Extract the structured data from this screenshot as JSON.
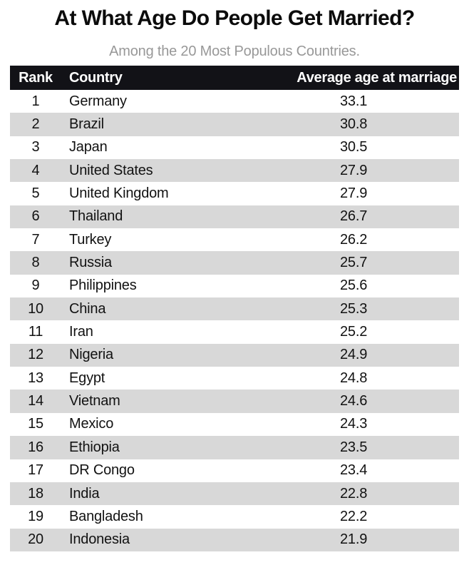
{
  "title": "At What Age Do People Get Married?",
  "subtitle": "Among the 20 Most Populous Countries.",
  "table": {
    "columns": [
      "Rank",
      "Country",
      "Average age at marriage"
    ],
    "rows": [
      {
        "rank": "1",
        "country": "Germany",
        "age": "33.1"
      },
      {
        "rank": "2",
        "country": "Brazil",
        "age": "30.8"
      },
      {
        "rank": "3",
        "country": "Japan",
        "age": "30.5"
      },
      {
        "rank": "4",
        "country": "United States",
        "age": "27.9"
      },
      {
        "rank": "5",
        "country": "United Kingdom",
        "age": "27.9"
      },
      {
        "rank": "6",
        "country": "Thailand",
        "age": "26.7"
      },
      {
        "rank": "7",
        "country": "Turkey",
        "age": "26.2"
      },
      {
        "rank": "8",
        "country": "Russia",
        "age": "25.7"
      },
      {
        "rank": "9",
        "country": "Philippines",
        "age": "25.6"
      },
      {
        "rank": "10",
        "country": "China",
        "age": "25.3"
      },
      {
        "rank": "11",
        "country": "Iran",
        "age": "25.2"
      },
      {
        "rank": "12",
        "country": "Nigeria",
        "age": "24.9"
      },
      {
        "rank": "13",
        "country": "Egypt",
        "age": "24.8"
      },
      {
        "rank": "14",
        "country": "Vietnam",
        "age": "24.6"
      },
      {
        "rank": "15",
        "country": "Mexico",
        "age": "24.3"
      },
      {
        "rank": "16",
        "country": "Ethiopia",
        "age": "23.5"
      },
      {
        "rank": "17",
        "country": "DR Congo",
        "age": "23.4"
      },
      {
        "rank": "18",
        "country": "India",
        "age": "22.8"
      },
      {
        "rank": "19",
        "country": "Bangladesh",
        "age": "22.2"
      },
      {
        "rank": "20",
        "country": "Indonesia",
        "age": "21.9"
      }
    ]
  },
  "colors": {
    "page_bg": "#ffffff",
    "title_text": "#0b0b0b",
    "subtitle_text": "#989898",
    "header_bg": "#121217",
    "header_text": "#ffffff",
    "row_bg": "#ffffff",
    "row_alt_bg": "#d8d8d8",
    "body_text": "#121212"
  },
  "chart_data": {
    "type": "table",
    "title": "At What Age Do People Get Married?",
    "subtitle": "Among the 20 Most Populous Countries.",
    "columns": [
      "Rank",
      "Country",
      "Average age at marriage"
    ],
    "rows": [
      [
        1,
        "Germany",
        33.1
      ],
      [
        2,
        "Brazil",
        30.8
      ],
      [
        3,
        "Japan",
        30.5
      ],
      [
        4,
        "United States",
        27.9
      ],
      [
        5,
        "United Kingdom",
        27.9
      ],
      [
        6,
        "Thailand",
        26.7
      ],
      [
        7,
        "Turkey",
        26.2
      ],
      [
        8,
        "Russia",
        25.7
      ],
      [
        9,
        "Philippines",
        25.6
      ],
      [
        10,
        "China",
        25.3
      ],
      [
        11,
        "Iran",
        25.2
      ],
      [
        12,
        "Nigeria",
        24.9
      ],
      [
        13,
        "Egypt",
        24.8
      ],
      [
        14,
        "Vietnam",
        24.6
      ],
      [
        15,
        "Mexico",
        24.3
      ],
      [
        16,
        "Ethiopia",
        23.5
      ],
      [
        17,
        "DR Congo",
        23.4
      ],
      [
        18,
        "India",
        22.8
      ],
      [
        19,
        "Bangladesh",
        22.2
      ],
      [
        20,
        "Indonesia",
        21.9
      ]
    ],
    "layout_hints": {
      "zebra_striping": "even rows shaded",
      "rank_alignment": "center",
      "country_alignment": "left",
      "value_alignment": "left-indented under right-aligned header",
      "sort": "descending by average age"
    }
  }
}
